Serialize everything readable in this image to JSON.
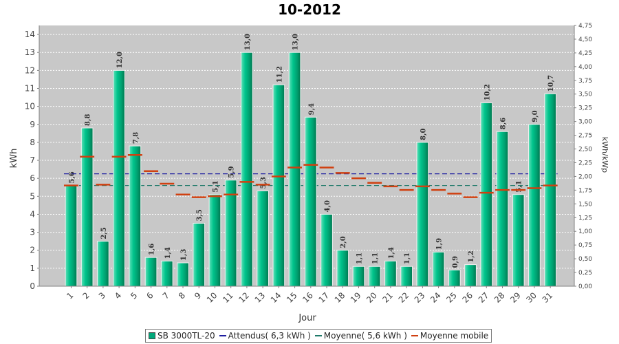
{
  "chart_data": {
    "type": "bar",
    "title": "10-2012",
    "xlabel": "Jour",
    "ylabel": "kWh",
    "y2label": "kWh/kWp",
    "ylim": [
      0,
      14.5
    ],
    "y2lim": [
      0,
      4.75
    ],
    "yticks": [
      "0",
      "1",
      "2",
      "3",
      "4",
      "5",
      "6",
      "7",
      "8",
      "9",
      "10",
      "11",
      "12",
      "13",
      "14"
    ],
    "y2ticks": [
      "0,00",
      "0,25",
      "0,50",
      "0,75",
      "1,00",
      "1,25",
      "1,50",
      "1,75",
      "2,00",
      "2,25",
      "2,50",
      "2,75",
      "3,00",
      "3,25",
      "3,50",
      "3,75",
      "4,00",
      "4,25",
      "4,50",
      "4,75"
    ],
    "grid": true,
    "legend_position": "bottom",
    "categories": [
      "1",
      "2",
      "3",
      "4",
      "5",
      "6",
      "7",
      "8",
      "9",
      "10",
      "11",
      "12",
      "13",
      "14",
      "15",
      "16",
      "17",
      "18",
      "19",
      "20",
      "21",
      "22",
      "23",
      "24",
      "25",
      "26",
      "27",
      "28",
      "29",
      "30",
      "31"
    ],
    "series": [
      {
        "name": "SB 3000TL-20",
        "kind": "bar",
        "color": "#00a87a",
        "values": [
          5.6,
          8.8,
          2.5,
          12.0,
          7.8,
          1.6,
          1.4,
          1.3,
          3.5,
          5.1,
          5.9,
          13.0,
          5.3,
          11.2,
          13.0,
          9.4,
          4.0,
          2.0,
          1.1,
          1.1,
          1.4,
          1.1,
          8.0,
          1.9,
          0.9,
          1.2,
          10.2,
          8.6,
          5.1,
          9.0,
          10.7
        ],
        "labels": [
          "5,6",
          "8,8",
          "2,5",
          "12,0",
          "7,8",
          "1,6",
          "1,4",
          "1,3",
          "3,5",
          "5,1",
          "5,9",
          "13,0",
          "5,3",
          "11,2",
          "13,0",
          "9,4",
          "4,0",
          "2,0",
          "1,1",
          "1,1",
          "1,4",
          "1,1",
          "8,0",
          "1,9",
          "0,9",
          "1,2",
          "10,2",
          "8,6",
          "5,1",
          "9,0",
          "10,7"
        ]
      },
      {
        "name": "Attendus( 6,3 kWh )",
        "kind": "hline",
        "color": "#1e1ea0",
        "value": 6.25
      },
      {
        "name": "Moyenne( 5,6 kWh )",
        "kind": "hline",
        "color": "#1f7a6a",
        "value": 5.6
      },
      {
        "name": "Moyenne mobile",
        "kind": "step",
        "color": "#d04010",
        "values": [
          5.6,
          7.2,
          5.65,
          7.2,
          7.3,
          6.4,
          5.7,
          5.1,
          4.95,
          5.0,
          5.1,
          5.8,
          5.65,
          6.1,
          6.6,
          6.75,
          6.6,
          6.3,
          6.0,
          5.75,
          5.55,
          5.35,
          5.55,
          5.35,
          5.15,
          4.95,
          5.2,
          5.35,
          5.35,
          5.45,
          5.6
        ]
      }
    ]
  }
}
